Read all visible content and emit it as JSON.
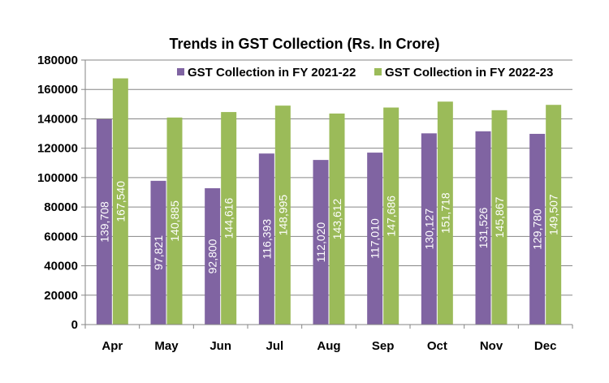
{
  "chart_data": {
    "type": "bar",
    "title": "Trends in GST Collection (Rs. In Crore)",
    "xlabel": "",
    "ylabel": "",
    "ylim": [
      0,
      180000
    ],
    "yticks": [
      0,
      20000,
      40000,
      60000,
      80000,
      100000,
      120000,
      140000,
      160000,
      180000
    ],
    "ytick_labels": [
      "0",
      "20000",
      "40000",
      "60000",
      "80000",
      "100000",
      "120000",
      "140000",
      "160000",
      "180000"
    ],
    "grid": true,
    "legend_position": "top",
    "categories": [
      "Apr",
      "May",
      "Jun",
      "Jul",
      "Aug",
      "Sep",
      "Oct",
      "Nov",
      "Dec"
    ],
    "series": [
      {
        "name": "GST Collection in FY 2021-22",
        "color": "#8064a2",
        "values": [
          139708,
          97821,
          92800,
          116393,
          112020,
          117010,
          130127,
          131526,
          129780
        ],
        "labels": [
          "139,708",
          "97,821",
          "92,800",
          "116,393",
          "112,020",
          "117,010",
          "130,127",
          "131,526",
          "129,780"
        ]
      },
      {
        "name": "GST Collection in FY 2022-23",
        "color": "#9bbb59",
        "values": [
          167540,
          140885,
          144616,
          148995,
          143612,
          147686,
          151718,
          145867,
          149507
        ],
        "labels": [
          "167,540",
          "140,885",
          "144,616",
          "148,995",
          "143,612",
          "147,686",
          "151,718",
          "145,867",
          "149,507"
        ]
      }
    ]
  }
}
